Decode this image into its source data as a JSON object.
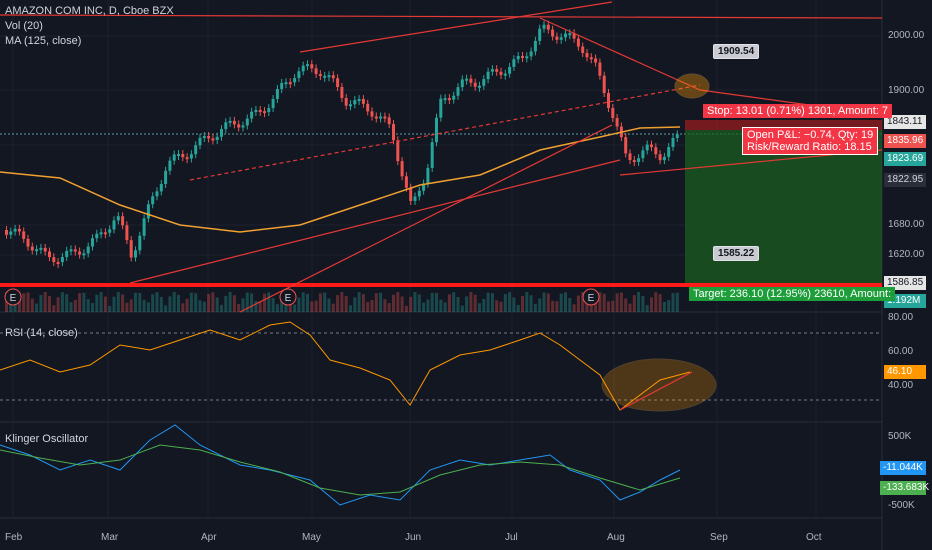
{
  "header": {
    "symbol": "AMAZON COM INC, D, Cboe BZX",
    "vol": "Vol (20)",
    "ma": "MA (125, close)"
  },
  "panes": {
    "rsi": "RSI (14, close)",
    "klinger": "Klinger Oscillator"
  },
  "price_axis": {
    "levels": [
      "2000.00",
      "1900.00",
      "1680.00",
      "1620.00"
    ],
    "tags": {
      "last_close": "1843.11",
      "stop_level": "1835.96",
      "current": "1823.69",
      "ma_value": "1822.95",
      "target_level": "1586.85",
      "volume": "1.192M"
    }
  },
  "rsi_axis": {
    "levels": [
      "80.00",
      "60.00",
      "40.00"
    ],
    "current": "46.10"
  },
  "klinger_axis": {
    "levels": [
      "500K",
      "-500K"
    ],
    "klinger": "-11.044K",
    "signal": "-133.683K"
  },
  "date_axis": [
    "Feb",
    "Mar",
    "Apr",
    "May",
    "Jun",
    "Jul",
    "Aug",
    "Sep",
    "Oct"
  ],
  "position": {
    "stop": "Stop: 13.01 (0.71%) 1301, Amount: 7",
    "pnl": "Open P&L: −0.74, Qty: 19",
    "rr": "Risk/Reward Ratio: 18.15",
    "target": "Target: 236.10 (12.95%) 23610, Amount:"
  },
  "callouts": {
    "high": "1909.54",
    "low": "1585.22"
  },
  "earnings_marker": "E",
  "colors": {
    "background": "#131722",
    "up": "#26a69a",
    "down": "#ef5350",
    "ma": "#f0a030",
    "trendline": "#e53935",
    "target_zone": "#1b5e20",
    "stop_zone": "#b71c1c",
    "rsi_line": "#ff9800",
    "klinger": "#2196f3",
    "signal": "#4caf50"
  }
}
